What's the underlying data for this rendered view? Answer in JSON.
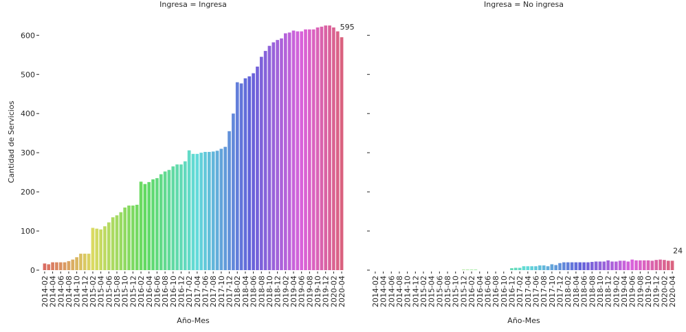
{
  "chart_data": [
    {
      "type": "bar",
      "title": "Ingresa = Ingresa",
      "ylabel": "Cantidad de Servicios",
      "xlabel": "Año-Mes",
      "palette": "husl",
      "categories": [
        "2014-02",
        null,
        "2014-04",
        null,
        "2014-06",
        null,
        "2014-08",
        null,
        "2014-10",
        null,
        "2014-12",
        null,
        "2015-02",
        null,
        "2015-04",
        null,
        "2015-06",
        null,
        "2015-08",
        null,
        "2015-10",
        null,
        "2015-12",
        null,
        "2016-02",
        null,
        "2016-04",
        null,
        "2016-06",
        null,
        "2016-08",
        null,
        "2016-10",
        null,
        "2016-12",
        null,
        "2017-02",
        null,
        "2017-04",
        null,
        "2017-06",
        null,
        "2017-08",
        null,
        "2017-10",
        null,
        "2017-12",
        null,
        "2018-02",
        null,
        "2018-04",
        null,
        "2018-06",
        null,
        "2018-08",
        null,
        "2018-10",
        null,
        "2018-12",
        null,
        "2019-02",
        null,
        "2019-04",
        null,
        "2019-06",
        null,
        "2019-08",
        null,
        "2019-10",
        null,
        "2019-12",
        null,
        "2020-02",
        null,
        "2020-04"
      ],
      "values": [
        17,
        15,
        20,
        20,
        20,
        20,
        23,
        27,
        33,
        42,
        42,
        42,
        108,
        106,
        104,
        112,
        122,
        135,
        140,
        148,
        160,
        165,
        165,
        167,
        226,
        220,
        225,
        232,
        235,
        245,
        252,
        256,
        265,
        270,
        270,
        278,
        306,
        297,
        297,
        300,
        302,
        302,
        303,
        305,
        310,
        315,
        355,
        400,
        480,
        477,
        490,
        495,
        503,
        520,
        545,
        560,
        573,
        582,
        588,
        592,
        605,
        607,
        612,
        610,
        610,
        615,
        615,
        615,
        620,
        622,
        625,
        625,
        620,
        610,
        595
      ],
      "value_label_index": 74,
      "ylim": [
        0,
        655
      ],
      "yticks": [
        0,
        100,
        200,
        300,
        400,
        500,
        600
      ]
    },
    {
      "type": "bar",
      "title": "Ingresa = No ingresa",
      "xlabel": "Año-Mes",
      "palette": "husl",
      "categories": [
        "2014-02",
        null,
        "2014-04",
        null,
        "2014-06",
        null,
        "2014-08",
        null,
        "2014-10",
        null,
        "2014-12",
        null,
        "2015-02",
        null,
        "2015-04",
        null,
        "2015-06",
        null,
        "2015-08",
        null,
        "2015-10",
        null,
        "2015-12",
        null,
        "2016-02",
        null,
        "2016-04",
        null,
        "2016-06",
        null,
        "2016-08",
        null,
        "2016-10",
        null,
        "2016-12",
        null,
        "2017-02",
        null,
        "2017-04",
        null,
        "2017-06",
        null,
        "2017-08",
        null,
        "2017-10",
        null,
        "2017-12",
        null,
        "2018-02",
        null,
        "2018-04",
        null,
        "2018-06",
        null,
        "2018-08",
        null,
        "2018-10",
        null,
        "2018-12",
        null,
        "2019-02",
        null,
        "2019-04",
        null,
        "2019-06",
        null,
        "2019-08",
        null,
        "2019-10",
        null,
        "2019-12",
        null,
        "2020-02",
        null,
        "2020-04"
      ],
      "values": [
        0,
        0,
        0,
        0,
        0,
        0,
        0,
        0,
        0,
        0,
        0,
        0,
        0,
        0,
        0,
        0,
        0,
        0,
        0,
        0,
        0,
        0,
        1,
        1,
        1,
        1,
        0,
        0,
        0,
        0,
        0,
        0,
        0,
        0,
        5,
        6,
        6,
        10,
        10,
        10,
        10,
        12,
        12,
        10,
        15,
        13,
        18,
        20,
        20,
        20,
        20,
        20,
        20,
        20,
        21,
        22,
        22,
        22,
        25,
        22,
        22,
        24,
        24,
        22,
        27,
        25,
        25,
        25,
        25,
        24,
        26,
        27,
        26,
        24,
        24
      ],
      "value_label_index": 74,
      "ylim": [
        0,
        655
      ],
      "yticks": [
        0,
        100,
        200,
        300,
        400,
        500,
        600
      ]
    }
  ]
}
